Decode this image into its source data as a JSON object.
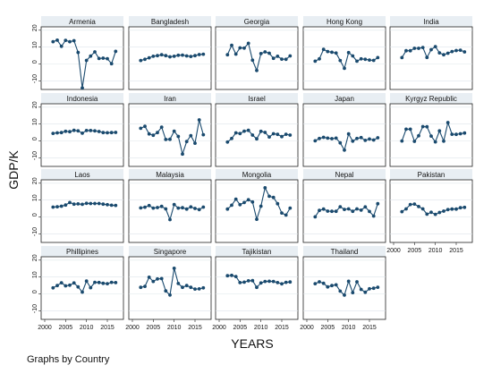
{
  "chart_data": {
    "type": "line",
    "ylabel": "GDP/K",
    "xlabel": "YEARS",
    "note": "Graphs by Country",
    "x": [
      2002,
      2003,
      2004,
      2005,
      2006,
      2007,
      2008,
      2009,
      2010,
      2011,
      2012,
      2013,
      2014,
      2015,
      2016,
      2017
    ],
    "xlim": [
      2000,
      2018
    ],
    "ylim": [
      -15,
      22
    ],
    "xticks": [
      2000,
      2005,
      2010,
      2015
    ],
    "yticks": [
      -10,
      0,
      10,
      20
    ],
    "grid": true,
    "panels": [
      {
        "name": "Armenia",
        "values": [
          13.2,
          14.1,
          10.5,
          14.0,
          13.2,
          13.8,
          6.9,
          -14.1,
          2.2,
          4.7,
          7.2,
          3.3,
          3.5,
          3.2,
          0.2,
          7.5
        ]
      },
      {
        "name": "Bangladesh",
        "values": [
          2.1,
          2.8,
          3.7,
          4.6,
          5.0,
          5.5,
          5.0,
          4.3,
          4.6,
          5.2,
          5.3,
          4.8,
          4.5,
          5.0,
          5.6,
          5.8
        ]
      },
      {
        "name": "Georgia",
        "values": [
          5.5,
          11.1,
          5.9,
          9.6,
          9.4,
          12.3,
          2.3,
          -3.8,
          6.2,
          7.2,
          6.4,
          3.4,
          4.6,
          2.9,
          2.8,
          4.8
        ]
      },
      {
        "name": "Hong Kong",
        "values": [
          1.7,
          3.1,
          8.7,
          7.4,
          7.0,
          6.5,
          2.1,
          -2.5,
          6.8,
          4.8,
          1.7,
          3.1,
          2.8,
          2.4,
          2.2,
          3.8
        ]
      },
      {
        "name": "India",
        "values": [
          3.8,
          7.9,
          7.9,
          9.3,
          9.3,
          9.8,
          3.9,
          8.5,
          10.3,
          6.6,
          5.5,
          6.4,
          7.4,
          8.0,
          8.2,
          7.2
        ]
      },
      {
        "name": "Indonesia",
        "values": [
          4.5,
          4.8,
          5.0,
          5.7,
          5.5,
          6.3,
          6.0,
          4.6,
          6.2,
          6.2,
          6.0,
          5.6,
          5.0,
          4.9,
          5.0,
          5.1
        ]
      },
      {
        "name": "Iran",
        "values": [
          7.5,
          8.7,
          4.2,
          3.4,
          5.0,
          8.2,
          0.9,
          1.0,
          5.8,
          2.7,
          -7.7,
          -0.3,
          3.2,
          -1.3,
          12.5,
          3.7
        ]
      },
      {
        "name": "Israel",
        "values": [
          -0.6,
          1.5,
          4.8,
          4.4,
          5.8,
          6.3,
          3.5,
          1.3,
          5.7,
          5.1,
          2.4,
          4.3,
          3.9,
          2.6,
          4.0,
          3.5
        ]
      },
      {
        "name": "Japan",
        "values": [
          0.1,
          1.5,
          2.2,
          1.7,
          1.4,
          1.7,
          -1.1,
          -5.4,
          4.2,
          -0.1,
          1.5,
          2.0,
          0.4,
          1.2,
          0.6,
          1.9
        ]
      },
      {
        "name": "Kyrgyz Republic",
        "values": [
          0.0,
          7.0,
          7.0,
          -0.2,
          3.1,
          8.5,
          8.4,
          2.9,
          -0.5,
          6.0,
          -0.1,
          10.9,
          4.0,
          3.9,
          4.3,
          4.7
        ]
      },
      {
        "name": "Laos",
        "values": [
          5.9,
          6.1,
          6.4,
          7.1,
          8.6,
          7.6,
          7.8,
          7.5,
          8.1,
          8.0,
          8.0,
          8.0,
          7.6,
          7.3,
          7.0,
          6.9
        ]
      },
      {
        "name": "Malaysia",
        "values": [
          5.4,
          5.8,
          6.8,
          5.3,
          5.6,
          6.3,
          4.8,
          -1.5,
          7.4,
          5.3,
          5.5,
          4.7,
          6.0,
          5.1,
          4.4,
          5.9
        ]
      },
      {
        "name": "Mongolia",
        "values": [
          4.7,
          7.0,
          10.6,
          7.3,
          8.6,
          10.2,
          8.9,
          -1.3,
          6.4,
          17.3,
          12.3,
          11.6,
          7.9,
          2.4,
          1.2,
          5.3
        ]
      },
      {
        "name": "Nepal",
        "values": [
          0.1,
          3.9,
          4.7,
          3.5,
          3.4,
          3.4,
          6.1,
          4.5,
          4.8,
          3.4,
          4.8,
          4.1,
          6.0,
          3.3,
          0.6,
          7.9
        ]
      },
      {
        "name": "Pakistan",
        "values": [
          3.2,
          4.8,
          7.4,
          7.7,
          6.2,
          4.8,
          1.7,
          2.8,
          1.6,
          2.7,
          3.5,
          4.4,
          4.7,
          4.7,
          5.5,
          5.7
        ]
      },
      {
        "name": "Phillipines",
        "values": [
          3.6,
          5.0,
          6.6,
          4.8,
          5.2,
          6.5,
          4.2,
          1.1,
          7.6,
          3.7,
          6.9,
          6.8,
          6.3,
          6.1,
          6.9,
          6.7
        ]
      },
      {
        "name": "Singapore",
        "values": [
          3.9,
          4.5,
          9.9,
          7.4,
          8.9,
          9.1,
          1.8,
          -0.6,
          15.2,
          6.2,
          3.9,
          5.0,
          3.9,
          2.9,
          3.0,
          3.6
        ]
      },
      {
        "name": "Tajikistan",
        "values": [
          10.8,
          11.0,
          10.3,
          6.7,
          7.0,
          7.8,
          7.9,
          3.9,
          6.5,
          7.4,
          7.5,
          7.4,
          6.7,
          6.0,
          6.9,
          7.1
        ]
      },
      {
        "name": "Thailand",
        "values": [
          6.1,
          7.2,
          6.3,
          4.2,
          5.0,
          5.4,
          1.7,
          -0.7,
          7.5,
          0.8,
          7.2,
          2.7,
          1.0,
          3.1,
          3.4,
          4.0
        ]
      }
    ]
  }
}
